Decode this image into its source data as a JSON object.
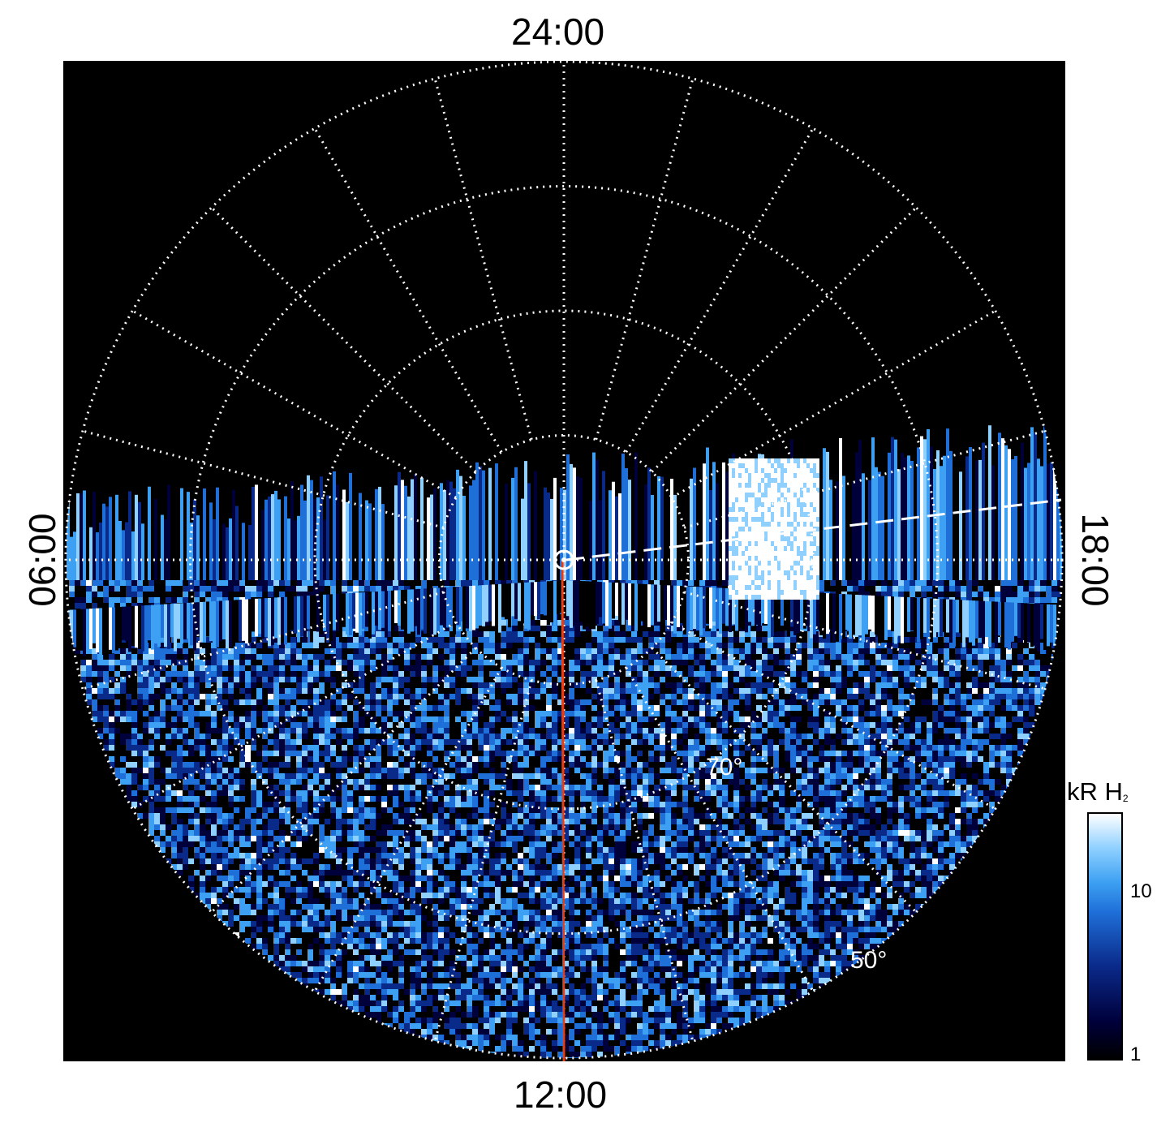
{
  "chart_data": {
    "type": "heatmap",
    "projection": "polar",
    "title": "",
    "local_time_labels": {
      "top": "24:00",
      "bottom": "12:00",
      "left": "06:00",
      "right": "18:00"
    },
    "latitude_labels": [
      "70°",
      "50°"
    ],
    "colorbar": {
      "label": "kR H",
      "label_subscript": "2",
      "scale": "log",
      "range": [
        1,
        25
      ],
      "ticks": [
        "1",
        "10"
      ],
      "colors": [
        "#000000",
        "#00003a",
        "#0a2a8a",
        "#1f6fd8",
        "#3da0f2",
        "#8fd0ff",
        "#ffffff"
      ]
    },
    "grid": true,
    "background": "#000000",
    "overlays": {
      "meridian_line_color": "#e0401a",
      "dashed_line_color": "#ffffff"
    }
  }
}
